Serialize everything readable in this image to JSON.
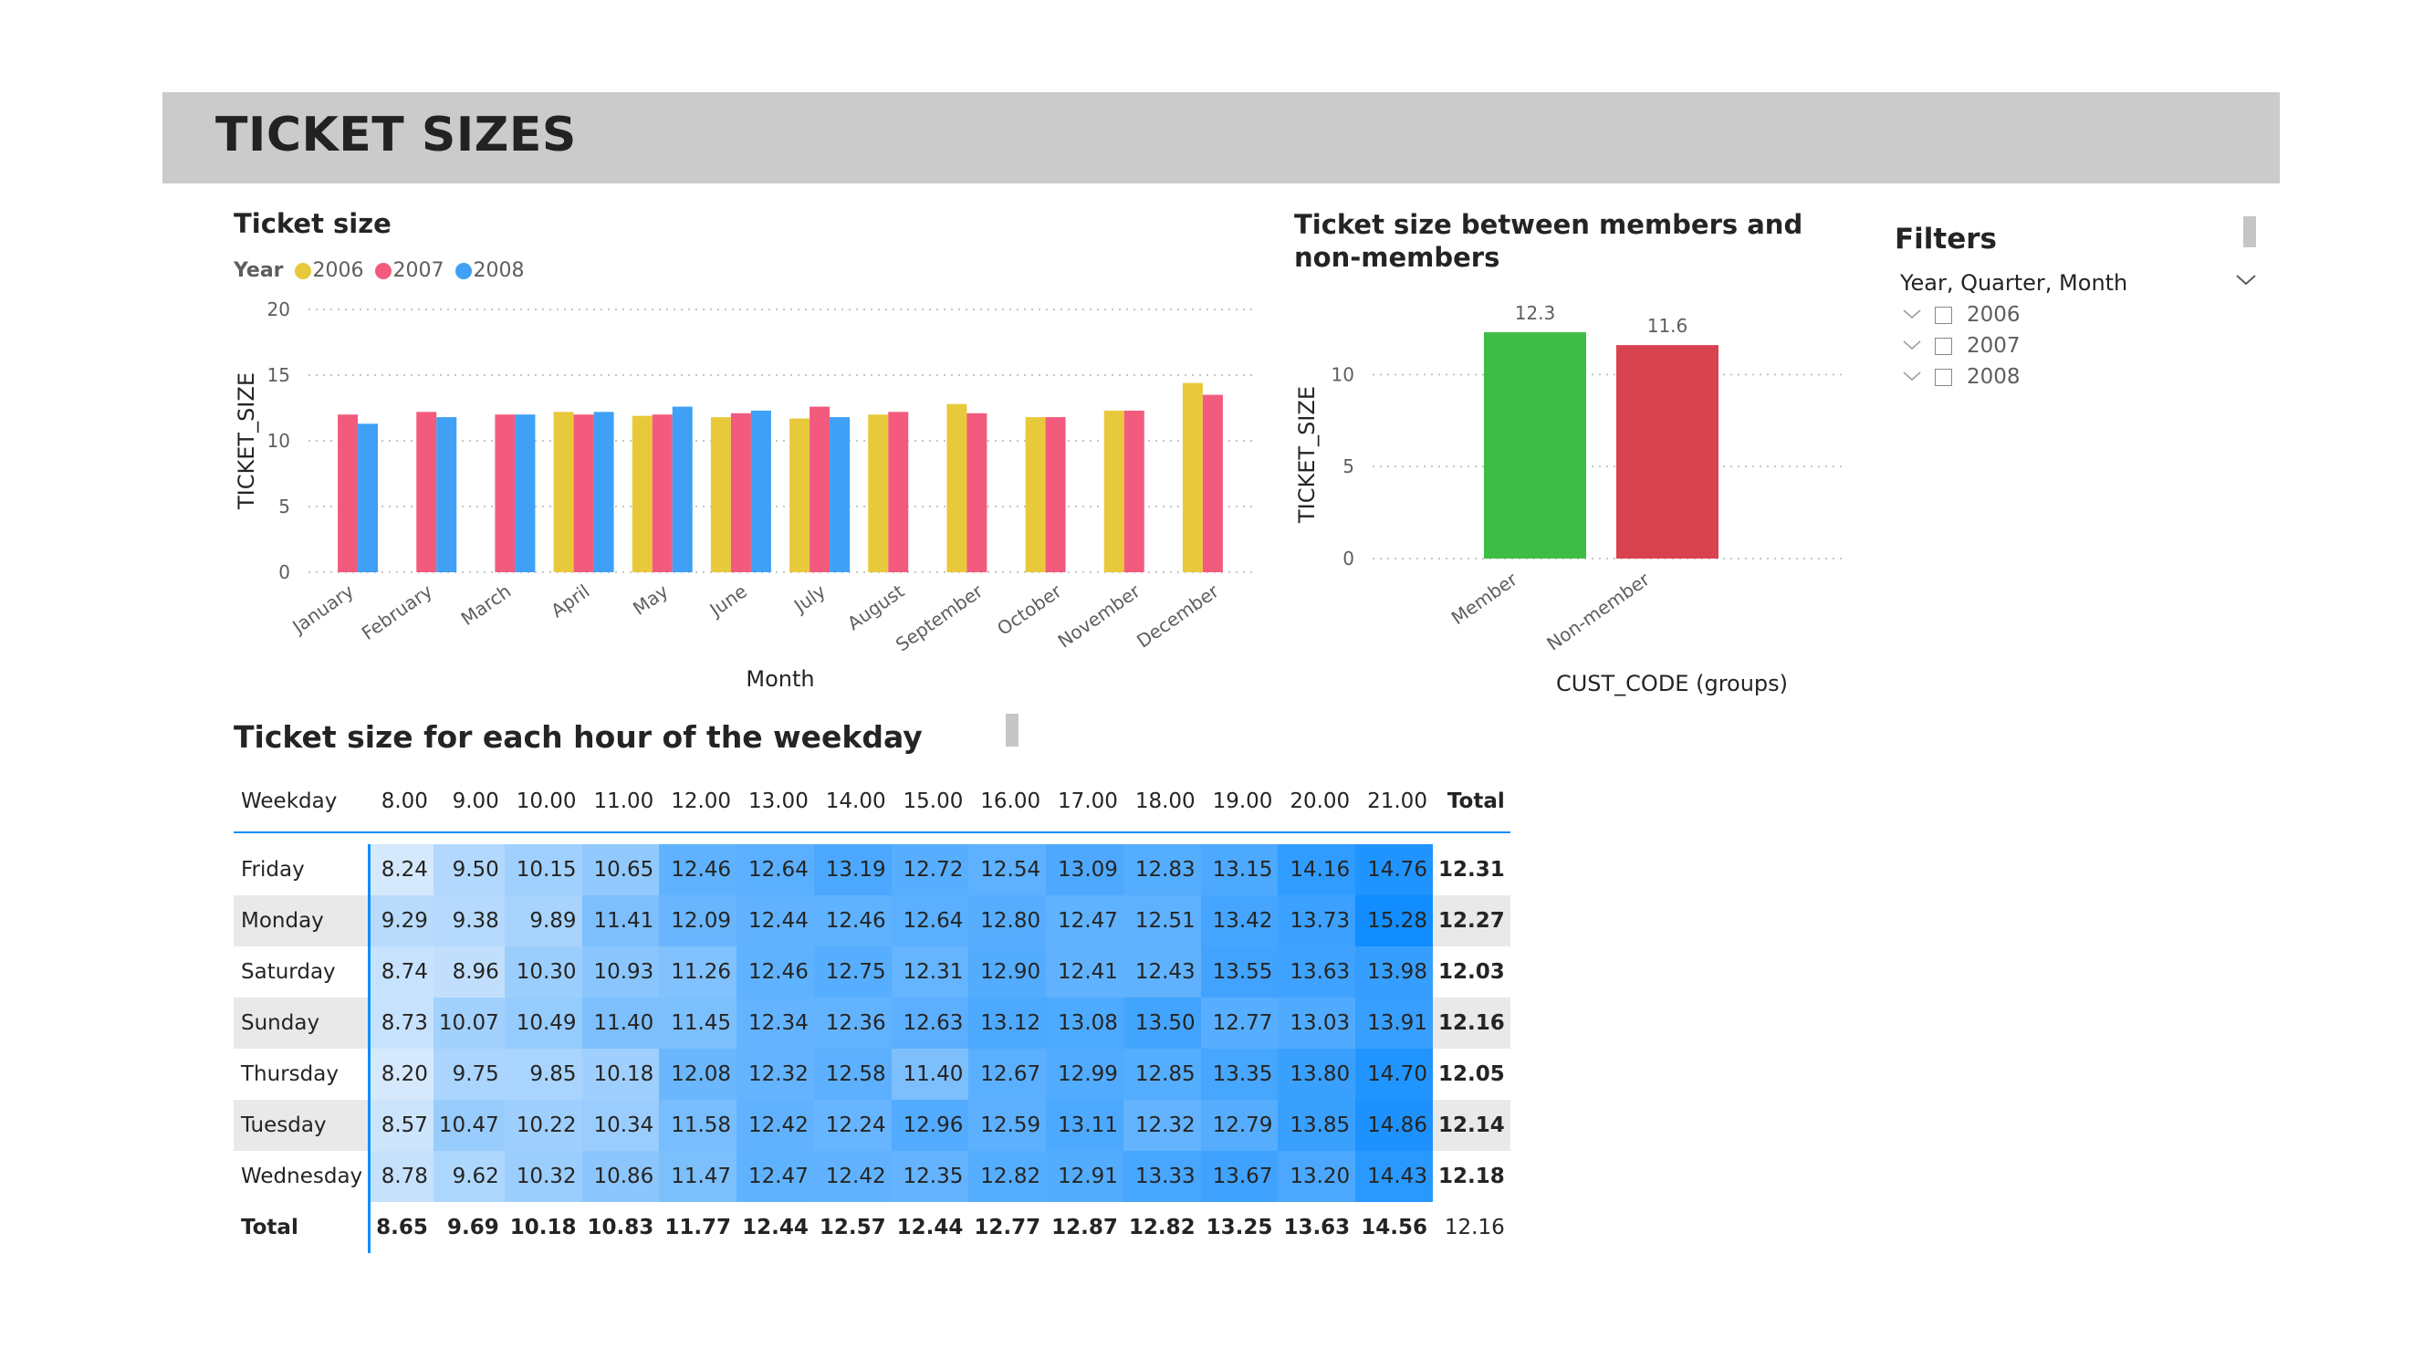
{
  "page": {
    "title": "TICKET SIZES"
  },
  "colors": {
    "header_bg": "#cbcbcb",
    "y2006": "#e8c93c",
    "y2007": "#f25b7d",
    "y2008": "#3fa0f5",
    "member": "#3dbd45",
    "non_member": "#d9434f",
    "heat_low": "#d6e9fc",
    "heat_high": "#118dff"
  },
  "filters": {
    "title": "Filters",
    "field_label": "Year, Quarter, Month",
    "options": [
      "2006",
      "2007",
      "2008"
    ]
  },
  "chart_data": [
    {
      "type": "bar",
      "title": "Ticket size",
      "legend_title": "Year",
      "legend_position": "top-left",
      "xlabel": "Month",
      "ylabel": "TICKET_SIZE",
      "ylim": [
        0,
        20
      ],
      "yticks": [
        0,
        5,
        10,
        15,
        20
      ],
      "grid": true,
      "categories": [
        "January",
        "February",
        "March",
        "April",
        "May",
        "June",
        "July",
        "August",
        "September",
        "October",
        "November",
        "December"
      ],
      "series": [
        {
          "name": "2006",
          "values": [
            null,
            null,
            null,
            12.2,
            11.9,
            11.8,
            11.7,
            12.0,
            12.8,
            11.8,
            12.3,
            14.4
          ]
        },
        {
          "name": "2007",
          "values": [
            12.0,
            12.2,
            12.0,
            12.0,
            12.0,
            12.1,
            12.6,
            12.2,
            12.1,
            11.8,
            12.3,
            13.5
          ]
        },
        {
          "name": "2008",
          "values": [
            11.3,
            11.8,
            12.0,
            12.2,
            12.6,
            12.3,
            11.8,
            null,
            null,
            null,
            null,
            null
          ]
        }
      ]
    },
    {
      "type": "bar",
      "title": "Ticket size between members and non-members",
      "title_lines": [
        "Ticket size between members and",
        "non-members"
      ],
      "xlabel": "CUST_CODE (groups)",
      "ylabel": "TICKET_SIZE",
      "ylim": [
        0,
        12.3
      ],
      "yticks": [
        0,
        5,
        10
      ],
      "grid": true,
      "categories": [
        "Member",
        "Non-member"
      ],
      "values": [
        12.3,
        11.6
      ],
      "data_labels": [
        "12.3",
        "11.6"
      ]
    },
    {
      "type": "table",
      "title": "Ticket size for each hour of the weekday",
      "columns": [
        "Weekday",
        "8.00",
        "9.00",
        "10.00",
        "11.00",
        "12.00",
        "13.00",
        "14.00",
        "15.00",
        "16.00",
        "17.00",
        "18.00",
        "19.00",
        "20.00",
        "21.00",
        "Total"
      ],
      "rows": [
        {
          "label": "Friday",
          "values": [
            "8.24",
            "9.50",
            "10.15",
            "10.65",
            "12.46",
            "12.64",
            "13.19",
            "12.72",
            "12.54",
            "13.09",
            "12.83",
            "13.15",
            "14.16",
            "14.76"
          ],
          "total": "12.31"
        },
        {
          "label": "Monday",
          "values": [
            "9.29",
            "9.38",
            "9.89",
            "11.41",
            "12.09",
            "12.44",
            "12.46",
            "12.64",
            "12.80",
            "12.47",
            "12.51",
            "13.42",
            "13.73",
            "15.28"
          ],
          "total": "12.27"
        },
        {
          "label": "Saturday",
          "values": [
            "8.74",
            "8.96",
            "10.30",
            "10.93",
            "11.26",
            "12.46",
            "12.75",
            "12.31",
            "12.90",
            "12.41",
            "12.43",
            "13.55",
            "13.63",
            "13.98"
          ],
          "total": "12.03"
        },
        {
          "label": "Sunday",
          "values": [
            "8.73",
            "10.07",
            "10.49",
            "11.40",
            "11.45",
            "12.34",
            "12.36",
            "12.63",
            "13.12",
            "13.08",
            "13.50",
            "12.77",
            "13.03",
            "13.91"
          ],
          "total": "12.16"
        },
        {
          "label": "Thursday",
          "values": [
            "8.20",
            "9.75",
            "9.85",
            "10.18",
            "12.08",
            "12.32",
            "12.58",
            "11.40",
            "12.67",
            "12.99",
            "12.85",
            "13.35",
            "13.80",
            "14.70"
          ],
          "total": "12.05"
        },
        {
          "label": "Tuesday",
          "values": [
            "8.57",
            "10.47",
            "10.22",
            "10.34",
            "11.58",
            "12.42",
            "12.24",
            "12.96",
            "12.59",
            "13.11",
            "12.32",
            "12.79",
            "13.85",
            "14.86"
          ],
          "total": "12.14"
        },
        {
          "label": "Wednesday",
          "values": [
            "8.78",
            "9.62",
            "10.32",
            "10.86",
            "11.47",
            "12.47",
            "12.42",
            "12.35",
            "12.82",
            "12.91",
            "13.33",
            "13.67",
            "13.20",
            "14.43"
          ],
          "total": "12.18"
        }
      ],
      "totals": {
        "label": "Total",
        "values": [
          "8.65",
          "9.69",
          "10.18",
          "10.83",
          "11.77",
          "12.44",
          "12.57",
          "12.44",
          "12.77",
          "12.87",
          "12.82",
          "13.25",
          "13.63",
          "14.56"
        ],
        "total": "12.16"
      }
    }
  ]
}
